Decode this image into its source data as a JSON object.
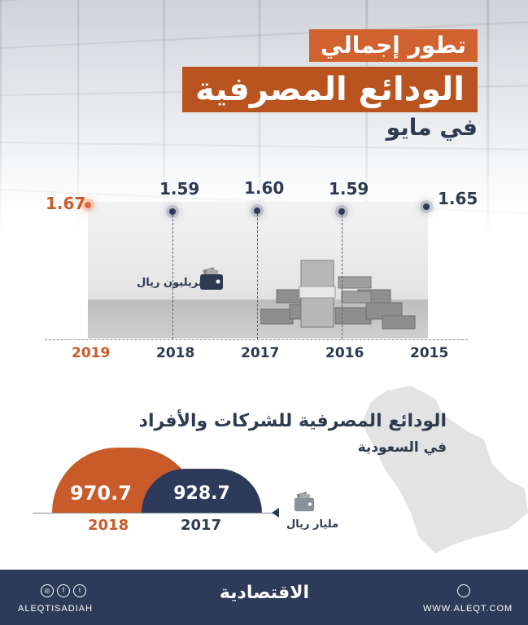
{
  "header": {
    "title_line1": "تطور إجمالي",
    "title_line2": "الودائع المصرفية",
    "title_line3": "في مايو"
  },
  "chart_data": {
    "type": "line",
    "unit": "تريليون ريال",
    "x": [
      "2019",
      "2018",
      "2017",
      "2016",
      "2015"
    ],
    "values": [
      1.67,
      1.59,
      1.6,
      1.59,
      1.65
    ],
    "value_labels": [
      "1.67",
      "1.59",
      "1.60",
      "1.59",
      "1.65"
    ],
    "highlight_color": "#c95a2a",
    "series_color": "#2d3a5a"
  },
  "section2": {
    "title": "الودائع المصرفية للشركات والأفراد",
    "subtitle": "في السعودية",
    "unit": "مليار ريال",
    "bars": [
      {
        "year": "2018",
        "value": "970.7",
        "color": "#c95a2a"
      },
      {
        "year": "2017",
        "value": "928.7",
        "color": "#2d3a5a"
      }
    ]
  },
  "footer": {
    "brand": "الاقتصادية",
    "handle": "ALEQTISADIAH",
    "website": "WWW.ALEQT.COM",
    "social_icons": [
      "instagram-icon",
      "facebook-icon",
      "twitter-icon"
    ]
  }
}
